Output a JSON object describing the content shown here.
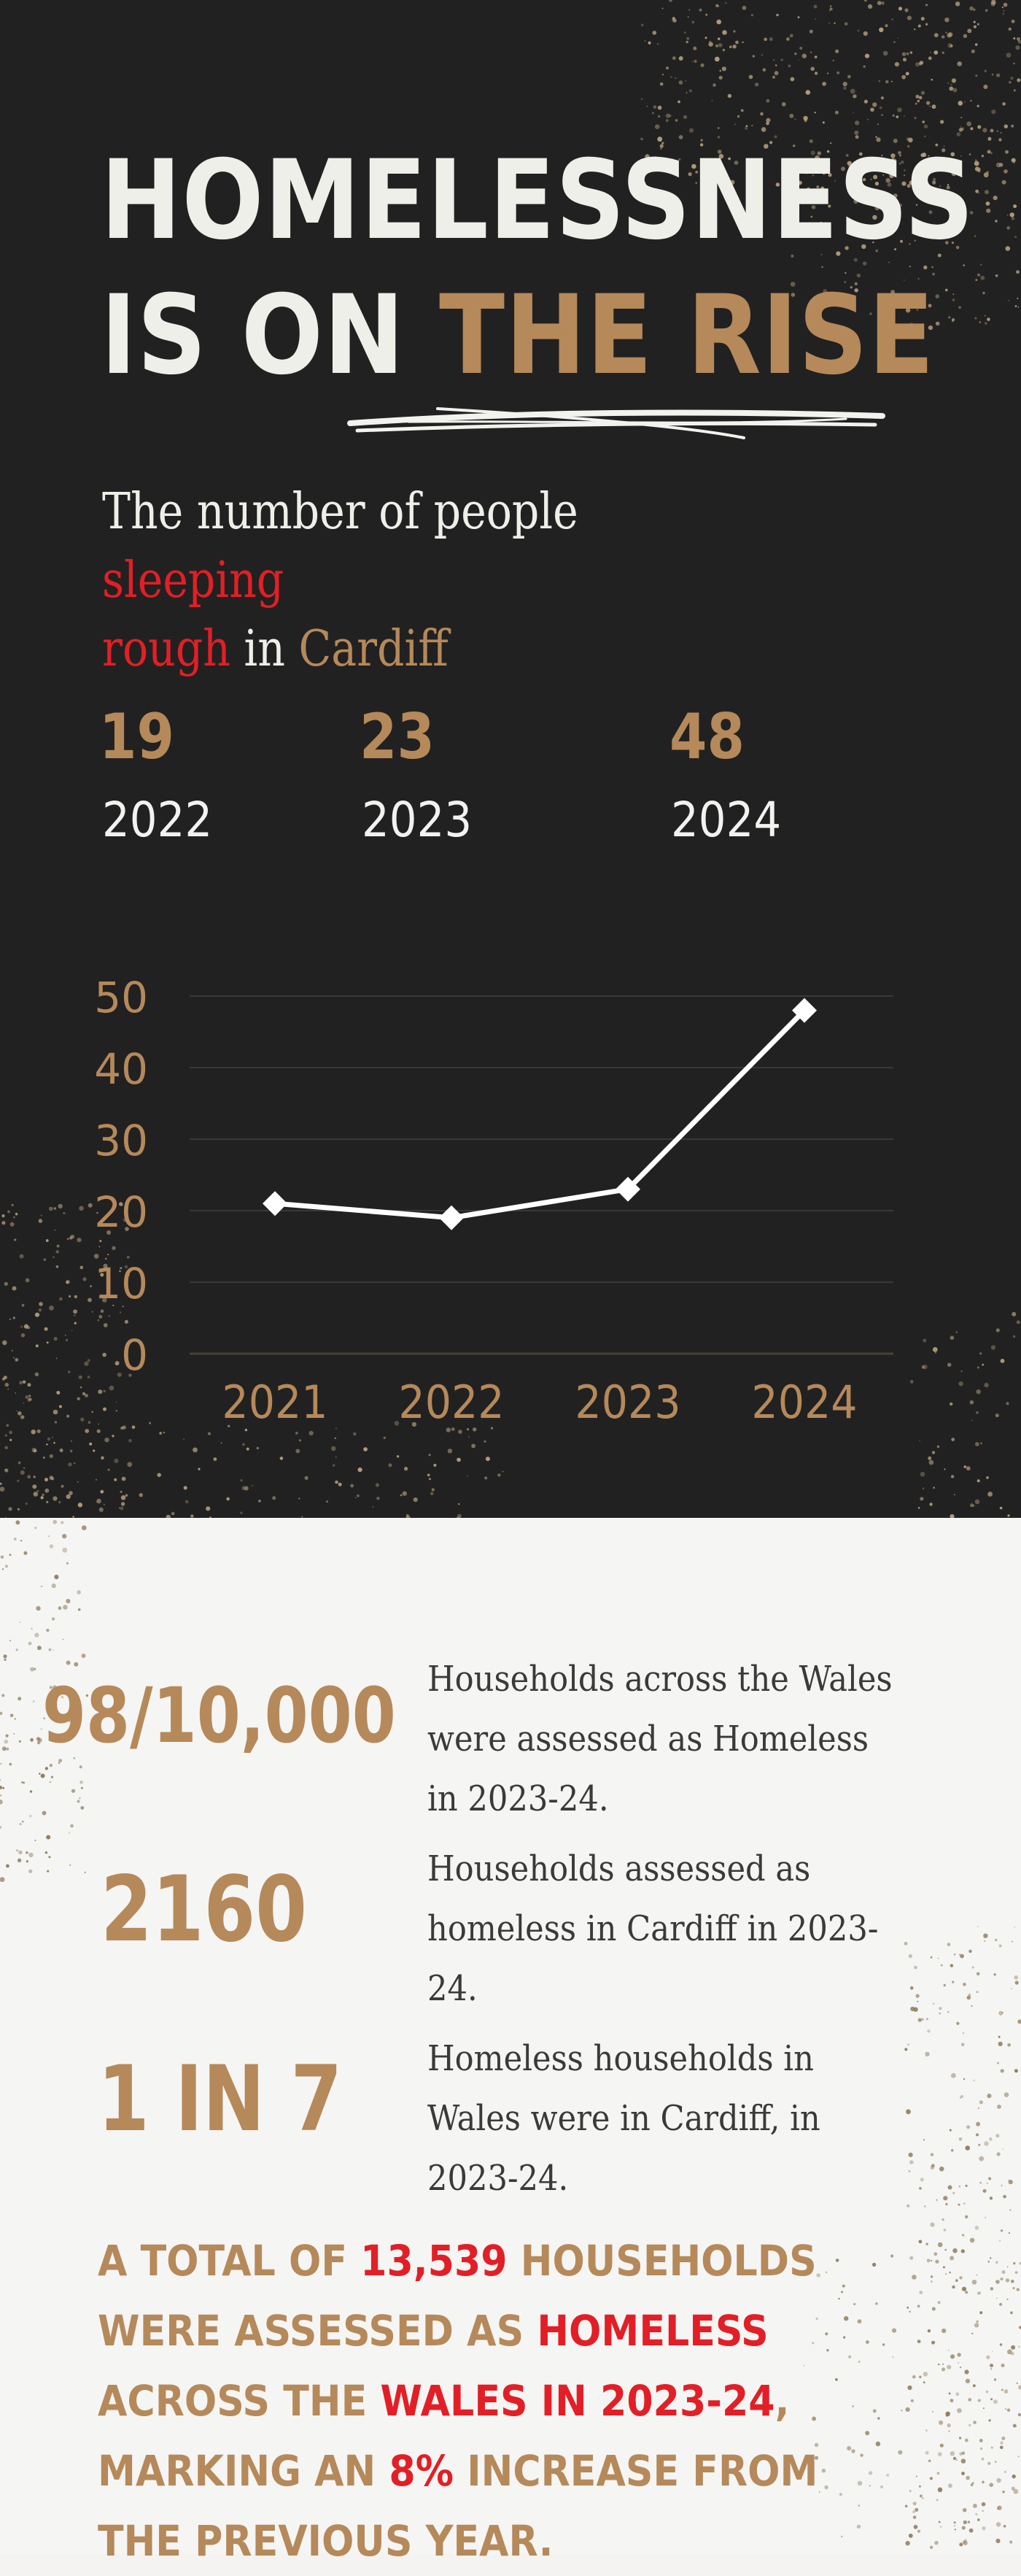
{
  "title": {
    "line1": "HOMELESSNESS",
    "line2_prefix": "IS ON ",
    "line2_highlight": "THE RISE"
  },
  "subtitle": {
    "part1": "The number of people",
    "part2": "sleeping",
    "part3": "rough",
    "part4": "in",
    "part5": "Cardiff"
  },
  "stats": [
    {
      "value": "19",
      "year": "2022"
    },
    {
      "value": "23",
      "year": "2023"
    },
    {
      "value": "48",
      "year": "2024"
    }
  ],
  "chart_data": {
    "type": "line",
    "categories": [
      "2021",
      "2022",
      "2023",
      "2024"
    ],
    "values": [
      21,
      19,
      23,
      48
    ],
    "ylim": [
      0,
      50
    ],
    "yticks": [
      "0",
      "10",
      "20",
      "30",
      "40",
      "50"
    ],
    "grid": true,
    "marker": "diamond",
    "colors": {
      "line": "#ffffff",
      "axis_text": "#b5895a",
      "grid": "#3a3939"
    }
  },
  "facts": [
    {
      "number": "98/10,000",
      "text": "Households across the Wales were assessed as Homeless in 2023-24."
    },
    {
      "number": "2160",
      "text": "Households assessed as homeless in Cardiff in 2023-24."
    },
    {
      "number": "1 IN 7",
      "text": "Homeless households in Wales were in Cardiff, in 2023-24."
    }
  ],
  "summary": {
    "p1": "A TOTAL OF ",
    "p2": "13,539",
    "p3": " HOUSEHOLDS WERE ASSESSED AS ",
    "p4": "HOMELESS",
    "p5": " ACROSS THE ",
    "p6": "WALES IN 2023-24",
    "p7": ", MARKING AN ",
    "p8": "8%",
    "p9": " INCREASE FROM THE PREVIOUS YEAR."
  },
  "colors": {
    "dark_bg": "#222121",
    "light_bg": "#f5f5f4",
    "gold": "#b5895a",
    "red": "#e21f26",
    "cream": "#efefe9"
  }
}
